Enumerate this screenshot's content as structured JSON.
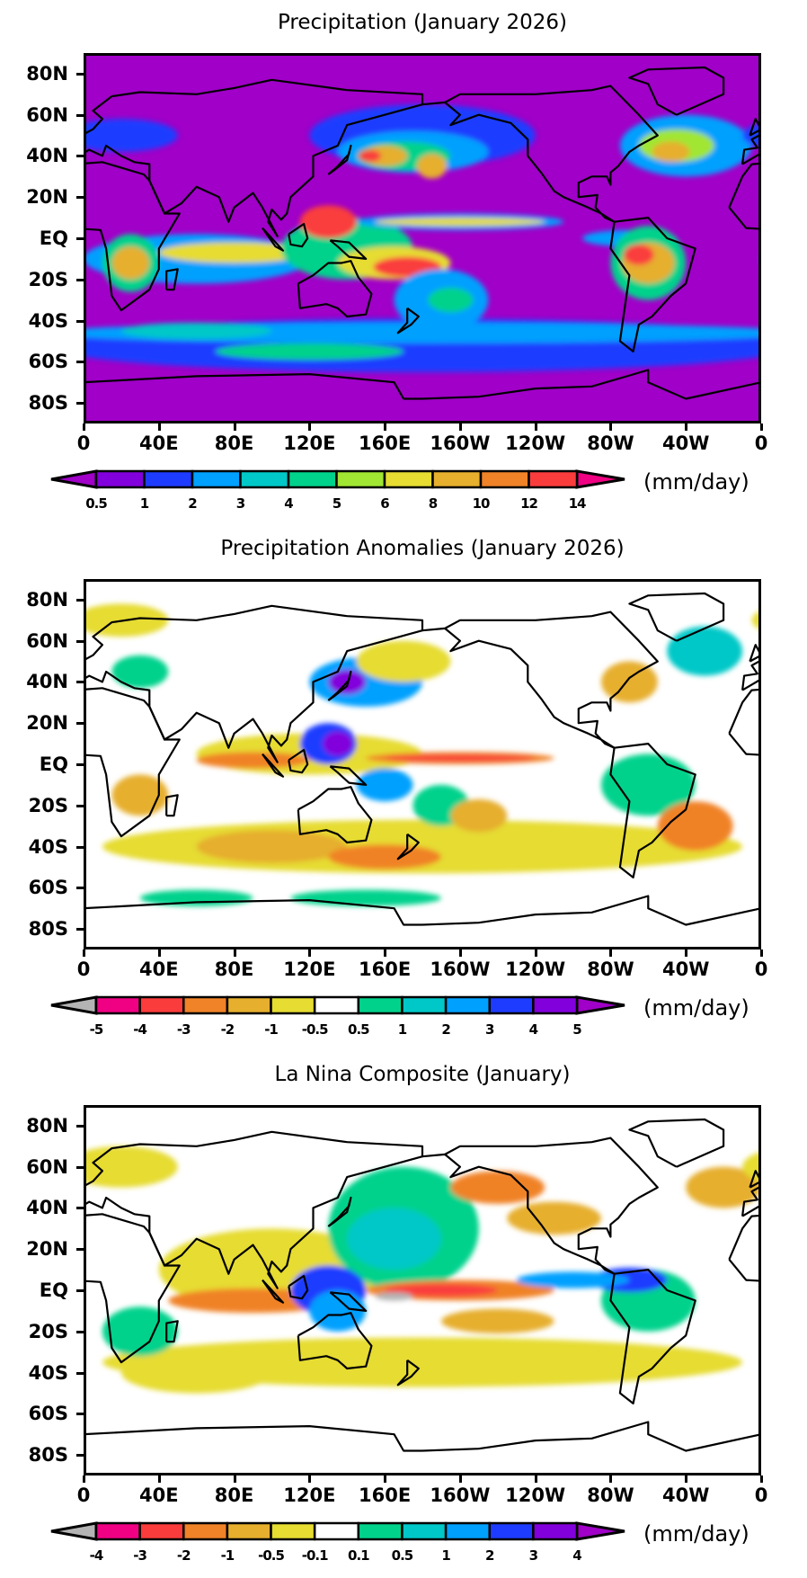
{
  "panels": [
    {
      "title": "Precipitation (January 2026)",
      "background_color": "#a000c8",
      "colorbar": {
        "labels": [
          "0.5",
          "1",
          "2",
          "3",
          "4",
          "5",
          "6",
          "8",
          "10",
          "12",
          "14"
        ],
        "colors": [
          "#a000c8",
          "#8200dc",
          "#1e3cff",
          "#00a0ff",
          "#00c8c8",
          "#00d28c",
          "#a0e632",
          "#e6dc32",
          "#e6af2d",
          "#f08228",
          "#fa3c3c",
          "#f00082"
        ]
      },
      "units": "(mm/day)"
    },
    {
      "title": "Precipitation Anomalies (January 2026)",
      "background_color": "#ffffff",
      "colorbar": {
        "labels": [
          "-5",
          "-4",
          "-3",
          "-2",
          "-1",
          "-0.5",
          "0.5",
          "1",
          "2",
          "3",
          "4",
          "5"
        ],
        "colors": [
          "#b4b4b4",
          "#f00082",
          "#fa3c3c",
          "#f08228",
          "#e6af2d",
          "#e6dc32",
          "#ffffff",
          "#00d28c",
          "#00c8c8",
          "#00a0ff",
          "#1e3cff",
          "#8200dc",
          "#a000c8"
        ]
      },
      "units": "(mm/day)"
    },
    {
      "title": "La Nina Composite (January)",
      "background_color": "#ffffff",
      "colorbar": {
        "labels": [
          "-4",
          "-3",
          "-2",
          "-1",
          "-0.5",
          "-0.1",
          "0.1",
          "0.5",
          "1",
          "2",
          "3",
          "4"
        ],
        "colors": [
          "#b4b4b4",
          "#f00082",
          "#fa3c3c",
          "#f08228",
          "#e6af2d",
          "#e6dc32",
          "#ffffff",
          "#00d28c",
          "#00c8c8",
          "#00a0ff",
          "#1e3cff",
          "#8200dc",
          "#a000c8"
        ]
      },
      "units": "(mm/day)"
    }
  ],
  "lat_ticks": [
    "80N",
    "60N",
    "40N",
    "20N",
    "EQ",
    "20S",
    "40S",
    "60S",
    "80S"
  ],
  "lon_ticks": [
    "0",
    "40E",
    "80E",
    "120E",
    "160E",
    "160W",
    "120W",
    "80W",
    "40W",
    "0"
  ]
}
